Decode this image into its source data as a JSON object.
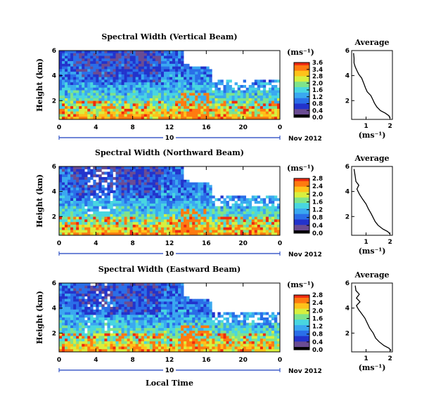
{
  "chart_data": [
    {
      "type": "heatmap",
      "title": "Spectral Width (Vertical Beam)",
      "ylabel": "Height (km)",
      "yticks": [
        "6",
        "4",
        "2"
      ],
      "xticks": [
        "0",
        "4",
        "8",
        "12",
        "16",
        "20",
        "0"
      ],
      "ylim": [
        0.5,
        6.0
      ],
      "xlim": [
        0,
        24
      ],
      "date_tick": "10",
      "date_label": "Nov 2012",
      "colorbar_unit": "(ms⁻¹)",
      "colorbar_ticks": [
        "3.6",
        "3.4",
        "2.8",
        "2.0",
        "1.6",
        "1.2",
        "0.8",
        "0.4",
        "0.0"
      ],
      "average": {
        "title": "Average",
        "xlabel": "(ms⁻¹)",
        "xticks": [
          "1",
          "2"
        ],
        "yticks": [
          "6",
          "4",
          "2"
        ],
        "xlim": [
          0.4,
          2.1
        ],
        "profile": [
          [
            2.0,
            0.6
          ],
          [
            1.95,
            0.8
          ],
          [
            1.8,
            1.0
          ],
          [
            1.6,
            1.2
          ],
          [
            1.45,
            1.5
          ],
          [
            1.35,
            1.8
          ],
          [
            1.28,
            2.1
          ],
          [
            1.2,
            2.4
          ],
          [
            1.05,
            2.7
          ],
          [
            0.98,
            3.0
          ],
          [
            0.9,
            3.4
          ],
          [
            0.82,
            3.8
          ],
          [
            0.7,
            4.1
          ],
          [
            0.62,
            4.4
          ],
          [
            0.55,
            4.7
          ],
          [
            0.5,
            5.0
          ],
          [
            0.5,
            5.4
          ],
          [
            0.48,
            5.8
          ]
        ]
      }
    },
    {
      "type": "heatmap",
      "title": "Spectral Width (Northward Beam)",
      "ylabel": "Height (km)",
      "yticks": [
        "6",
        "4",
        "2"
      ],
      "xticks": [
        "0",
        "4",
        "8",
        "12",
        "16",
        "20",
        "0"
      ],
      "ylim": [
        0.5,
        6.0
      ],
      "xlim": [
        0,
        24
      ],
      "date_tick": "10",
      "date_label": "Nov 2012",
      "colorbar_unit": "(ms⁻¹)",
      "colorbar_ticks": [
        "2.8",
        "2.4",
        "2.0",
        "1.6",
        "1.2",
        "0.8",
        "0.4",
        "0.0"
      ],
      "average": {
        "title": "Average",
        "xlabel": "(ms⁻¹)",
        "xticks": [
          "1",
          "2"
        ],
        "yticks": [
          "6",
          "4",
          "2"
        ],
        "xlim": [
          0.4,
          2.1
        ],
        "profile": [
          [
            2.0,
            0.6
          ],
          [
            1.9,
            0.8
          ],
          [
            1.7,
            1.0
          ],
          [
            1.5,
            1.3
          ],
          [
            1.38,
            1.6
          ],
          [
            1.3,
            1.9
          ],
          [
            1.22,
            2.2
          ],
          [
            1.1,
            2.6
          ],
          [
            1.0,
            3.0
          ],
          [
            0.85,
            3.4
          ],
          [
            0.72,
            3.8
          ],
          [
            0.62,
            4.2
          ],
          [
            0.7,
            4.5
          ],
          [
            0.58,
            4.8
          ],
          [
            0.55,
            5.2
          ],
          [
            0.5,
            5.8
          ]
        ]
      }
    },
    {
      "type": "heatmap",
      "title": "Spectral Width (Eastward Beam)",
      "ylabel": "Height (km)",
      "yticks": [
        "6",
        "4",
        "2"
      ],
      "xticks": [
        "0",
        "4",
        "8",
        "12",
        "16",
        "20",
        "0"
      ],
      "ylim": [
        0.5,
        6.0
      ],
      "xlim": [
        0,
        24
      ],
      "date_tick": "10",
      "date_label": "Nov 2012",
      "xlabel": "Local Time",
      "colorbar_unit": "(ms⁻¹)",
      "colorbar_ticks": [
        "2.8",
        "2.4",
        "2.0",
        "1.6",
        "1.2",
        "0.8",
        "0.4",
        "0.0"
      ],
      "average": {
        "title": "Average",
        "xlabel": "(ms⁻¹)",
        "xticks": [
          "1",
          "2"
        ],
        "yticks": [
          "6",
          "4",
          "2"
        ],
        "xlim": [
          0.4,
          2.1
        ],
        "profile": [
          [
            2.05,
            0.6
          ],
          [
            1.95,
            0.8
          ],
          [
            1.75,
            1.0
          ],
          [
            1.55,
            1.3
          ],
          [
            1.4,
            1.6
          ],
          [
            1.3,
            2.0
          ],
          [
            1.15,
            2.4
          ],
          [
            1.05,
            2.8
          ],
          [
            0.95,
            3.2
          ],
          [
            0.8,
            3.6
          ],
          [
            0.68,
            3.9
          ],
          [
            0.6,
            4.2
          ],
          [
            0.75,
            4.5
          ],
          [
            0.6,
            4.8
          ],
          [
            0.72,
            5.1
          ],
          [
            0.58,
            5.4
          ],
          [
            0.55,
            5.8
          ]
        ]
      }
    }
  ],
  "colors": {
    "scale": [
      "#000000",
      "#6a4c93",
      "#2233cc",
      "#2a6ee8",
      "#3aa8f0",
      "#49d6e0",
      "#7fe38b",
      "#d8ef3e",
      "#ffc21a",
      "#ff7a10",
      "#ee2a10"
    ],
    "axis": "#000000",
    "date_axis": "#1a3fbf"
  }
}
